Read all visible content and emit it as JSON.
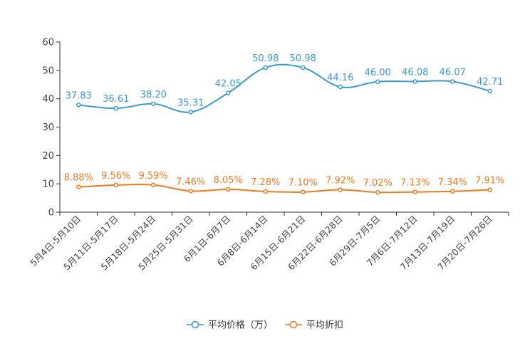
{
  "chart_data": {
    "type": "line",
    "categories": [
      "5月4日-5月10日",
      "5月11日-5月17日",
      "5月18日-5月24日",
      "5月25日-5月31日",
      "6月1日-6月7日",
      "6月8日-6月14日",
      "6月15日-6月21日",
      "6月22日-6月28日",
      "6月29日-7月5日",
      "7月6日-7月12日",
      "7月13日-7月19日",
      "7月20日-7月26日"
    ],
    "ylim": [
      0,
      60
    ],
    "yticks": [
      0,
      10,
      20,
      30,
      40,
      50,
      60
    ],
    "ytick_labels": [
      "0",
      "10",
      "20",
      "30",
      "40",
      "50",
      "60"
    ],
    "series": [
      {
        "name": "平均价格（万）",
        "color": "#3a9bd0",
        "values": [
          37.83,
          36.61,
          38.2,
          35.31,
          42.05,
          50.98,
          50.98,
          44.16,
          46.0,
          46.08,
          46.07,
          42.71
        ],
        "labels": [
          "37.83",
          "36.61",
          "38.20",
          "35.31",
          "42.05",
          "50.98",
          "50.98",
          "44.16",
          "46.00",
          "46.08",
          "46.07",
          "42.71"
        ]
      },
      {
        "name": "平均折扣",
        "color": "#f07a1e",
        "values": [
          8.88,
          9.56,
          9.59,
          7.46,
          8.05,
          7.28,
          7.1,
          7.92,
          7.02,
          7.13,
          7.34,
          7.91
        ],
        "labels": [
          "8.88%",
          "9.56%",
          "9.59%",
          "7.46%",
          "8.05%",
          "7.28%",
          "7.10%",
          "7.92%",
          "7.02%",
          "7.13%",
          "7.34%",
          "7.91%"
        ]
      }
    ],
    "legend_position": "bottom-center",
    "grid": false
  }
}
